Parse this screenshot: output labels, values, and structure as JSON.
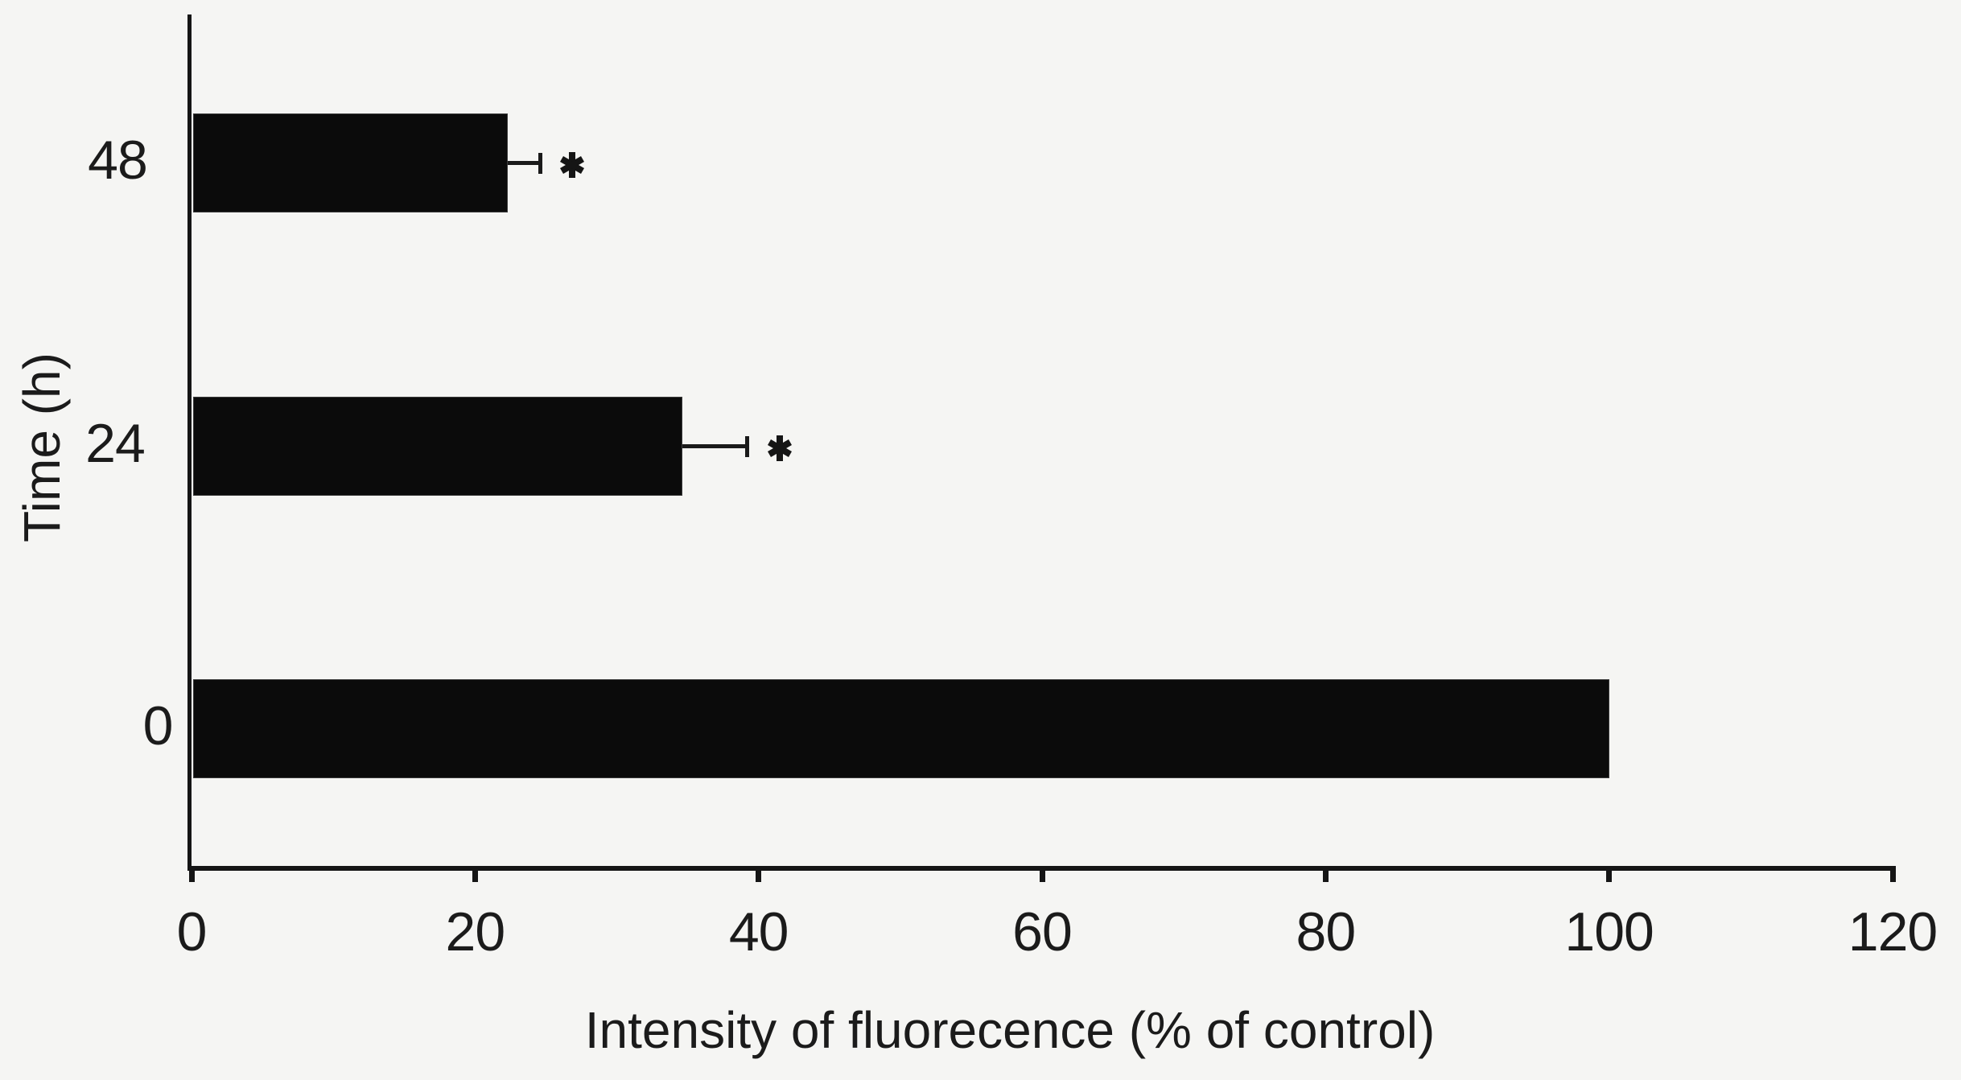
{
  "figure": {
    "background_color": "#f5f5f3",
    "bar_color": "#0b0b0b",
    "axis_color": "#151515",
    "text_color": "#1b1b1b"
  },
  "chart_data": {
    "type": "bar",
    "orientation": "horizontal",
    "title": "",
    "xlabel": "Intensity of fluorecence (% of control)",
    "ylabel": "Time (h)",
    "categories": [
      "48",
      "24",
      "0"
    ],
    "values": [
      22.3,
      34.6,
      100
    ],
    "errors": [
      2.3,
      4.6,
      0
    ],
    "annotations": [
      "*",
      "*",
      ""
    ],
    "x_ticks": [
      "0",
      "20",
      "40",
      "60",
      "80",
      "100",
      "120"
    ],
    "xlim": [
      0,
      120
    ],
    "grid": false,
    "legend": null,
    "error_bar_side": "plus",
    "bars_start_at_axis": true
  }
}
